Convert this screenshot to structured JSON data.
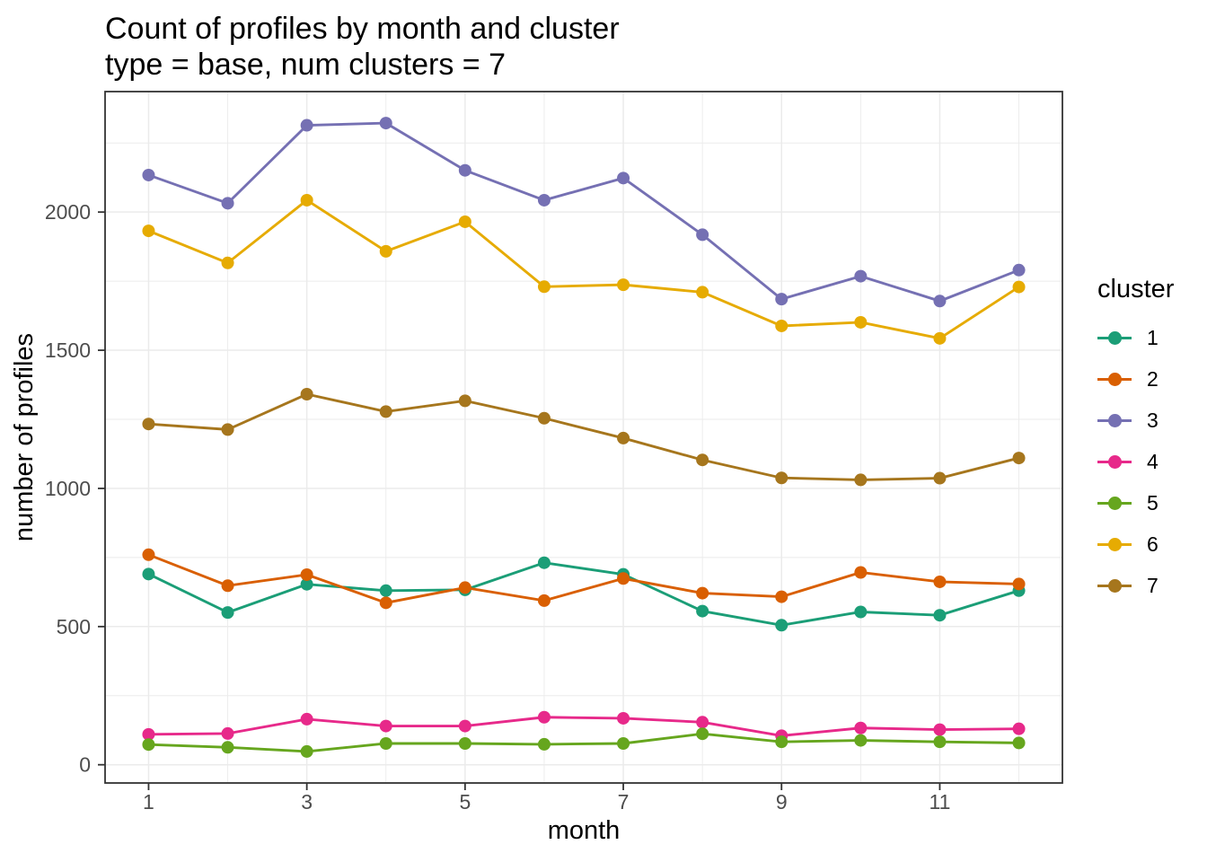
{
  "chart_data": {
    "type": "line",
    "title": "Count of profiles by month and cluster",
    "subtitle": "type = base, num clusters = 7",
    "xlabel": "month",
    "ylabel": "number of profiles",
    "legend_title": "cluster",
    "legend_position": "right",
    "grid": "major and minor gridlines, light gray on white panel with dark border",
    "x": [
      1,
      2,
      3,
      4,
      5,
      6,
      7,
      8,
      9,
      10,
      11,
      12
    ],
    "x_ticks": [
      1,
      3,
      5,
      7,
      9,
      11
    ],
    "x_minor": [
      2,
      4,
      6,
      8,
      10,
      12
    ],
    "y_ticks": [
      0,
      500,
      1000,
      1500,
      2000
    ],
    "y_minor": [
      250,
      750,
      1250,
      1750,
      2250
    ],
    "xlim": [
      0.45,
      12.55
    ],
    "ylim": [
      -66,
      2436
    ],
    "series": [
      {
        "name": "1",
        "color": "#1B9E77",
        "values": [
          690,
          551,
          653,
          630,
          633,
          731,
          689,
          556,
          505,
          553,
          541,
          630
        ]
      },
      {
        "name": "2",
        "color": "#D95F02",
        "values": [
          760,
          648,
          688,
          586,
          641,
          594,
          674,
          621,
          608,
          696,
          662,
          654
        ]
      },
      {
        "name": "3",
        "color": "#7570B3",
        "values": [
          2134,
          2032,
          2314,
          2322,
          2151,
          2043,
          2123,
          1918,
          1685,
          1768,
          1678,
          1790
        ]
      },
      {
        "name": "4",
        "color": "#E7298A",
        "values": [
          110,
          113,
          165,
          140,
          140,
          172,
          168,
          154,
          105,
          133,
          127,
          130
        ]
      },
      {
        "name": "5",
        "color": "#66A61E",
        "values": [
          73,
          63,
          48,
          77,
          77,
          74,
          77,
          112,
          83,
          88,
          83,
          79
        ]
      },
      {
        "name": "6",
        "color": "#E6AB02",
        "values": [
          1932,
          1816,
          2043,
          1858,
          1965,
          1730,
          1737,
          1710,
          1588,
          1601,
          1543,
          1729
        ]
      },
      {
        "name": "7",
        "color": "#A6761D",
        "values": [
          1233,
          1213,
          1341,
          1278,
          1317,
          1254,
          1182,
          1103,
          1038,
          1031,
          1037,
          1110
        ]
      }
    ]
  },
  "theme": {
    "background": "#FFFFFF",
    "grid_color": "#EBEBEB",
    "panel_border_color": "#333333",
    "tick_color": "#333333",
    "tick_label_color": "#4D4D4D",
    "text_color": "#000000"
  }
}
